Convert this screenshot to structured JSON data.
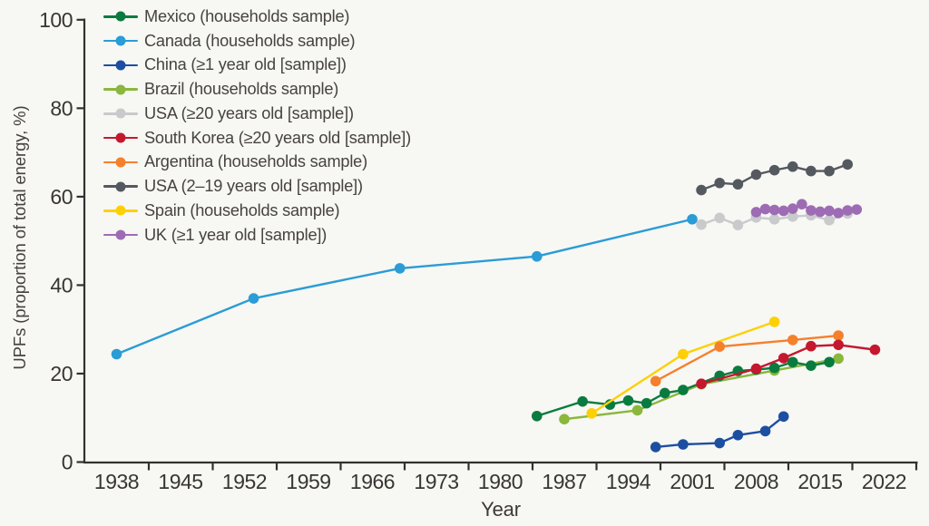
{
  "figure": {
    "background": "#f7f7f4",
    "axis_color": "#33312f",
    "text_color": "#45423f"
  },
  "chart_data": {
    "type": "line",
    "title": "",
    "xlabel": "Year",
    "ylabel": "UPFs (proportion of total energy, %)",
    "x_ticks": [
      1938,
      1945,
      1952,
      1959,
      1966,
      1973,
      1980,
      1987,
      1994,
      2001,
      2008,
      2015,
      2022
    ],
    "y_ticks": [
      0,
      20,
      40,
      60,
      80,
      100
    ],
    "ylim": [
      0,
      100
    ],
    "grid": false,
    "legend_position": "top-left",
    "series": [
      {
        "name": "mexico",
        "label": "Mexico (households sample)",
        "color": "#0a7b3e",
        "points": [
          [
            1984,
            10.4
          ],
          [
            1989,
            13.7
          ],
          [
            1992,
            13.0
          ],
          [
            1994,
            13.9
          ],
          [
            1996,
            13.3
          ],
          [
            1998,
            15.6
          ],
          [
            2000,
            16.3
          ],
          [
            2004,
            19.5
          ],
          [
            2006,
            20.6
          ],
          [
            2008,
            20.9
          ],
          [
            2010,
            21.3
          ],
          [
            2012,
            22.6
          ],
          [
            2014,
            21.8
          ],
          [
            2016,
            22.6
          ]
        ]
      },
      {
        "name": "canada",
        "label": "Canada (households sample)",
        "color": "#2a9cd6",
        "points": [
          [
            1938,
            24.4
          ],
          [
            1953,
            37.0
          ],
          [
            1969,
            43.8
          ],
          [
            1984,
            46.5
          ],
          [
            2001,
            54.9
          ]
        ]
      },
      {
        "name": "china",
        "label": "China (≥1 year old [sample])",
        "color": "#1d4fa1",
        "points": [
          [
            1997,
            3.4
          ],
          [
            2000,
            4.0
          ],
          [
            2004,
            4.3
          ],
          [
            2006,
            6.1
          ],
          [
            2009,
            7.0
          ],
          [
            2011,
            10.3
          ]
        ]
      },
      {
        "name": "brazil",
        "label": "Brazil (households sample)",
        "color": "#8ab73c",
        "points": [
          [
            1987,
            9.7
          ],
          [
            1995,
            11.7
          ],
          [
            2002,
            17.6
          ],
          [
            2010,
            20.7
          ],
          [
            2017,
            23.4
          ]
        ]
      },
      {
        "name": "usa-adults",
        "label": "USA (≥20 years old [sample])",
        "color": "#c8cacb",
        "points": [
          [
            2002,
            53.7
          ],
          [
            2004,
            55.2
          ],
          [
            2006,
            53.6
          ],
          [
            2008,
            55.3
          ],
          [
            2010,
            54.9
          ],
          [
            2012,
            55.5
          ],
          [
            2014,
            55.8
          ],
          [
            2016,
            54.7
          ],
          [
            2018,
            56.2
          ]
        ]
      },
      {
        "name": "south-korea",
        "label": "South Korea (≥20 years old [sample])",
        "color": "#c4182f",
        "points": [
          [
            2002,
            17.7
          ],
          [
            2008,
            21.1
          ],
          [
            2011,
            23.5
          ],
          [
            2014,
            26.2
          ],
          [
            2017,
            26.5
          ],
          [
            2021,
            25.4
          ]
        ]
      },
      {
        "name": "argentina",
        "label": "Argentina (households sample)",
        "color": "#f5802b",
        "points": [
          [
            1997,
            18.3
          ],
          [
            2004,
            26.1
          ],
          [
            2012,
            27.6
          ],
          [
            2017,
            28.6
          ]
        ]
      },
      {
        "name": "usa-youths",
        "label": "USA (2–19 years old [sample])",
        "color": "#54595f",
        "points": [
          [
            2002,
            61.5
          ],
          [
            2004,
            63.1
          ],
          [
            2006,
            62.8
          ],
          [
            2008,
            65.0
          ],
          [
            2010,
            66.0
          ],
          [
            2012,
            66.8
          ],
          [
            2014,
            65.8
          ],
          [
            2016,
            65.8
          ],
          [
            2018,
            67.3
          ]
        ]
      },
      {
        "name": "spain",
        "label": "Spain (households sample)",
        "color": "#fdd006",
        "points": [
          [
            1990,
            11.0
          ],
          [
            2000,
            24.4
          ],
          [
            2010,
            31.7
          ]
        ]
      },
      {
        "name": "uk",
        "label": "UK (≥1 year old [sample])",
        "color": "#9d6cb4",
        "points": [
          [
            2008,
            56.5
          ],
          [
            2009,
            57.2
          ],
          [
            2010,
            57.0
          ],
          [
            2011,
            56.8
          ],
          [
            2012,
            57.3
          ],
          [
            2013,
            58.3
          ],
          [
            2014,
            56.9
          ],
          [
            2015,
            56.6
          ],
          [
            2016,
            56.8
          ],
          [
            2017,
            56.3
          ],
          [
            2018,
            56.9
          ],
          [
            2019,
            57.1
          ]
        ]
      }
    ]
  }
}
